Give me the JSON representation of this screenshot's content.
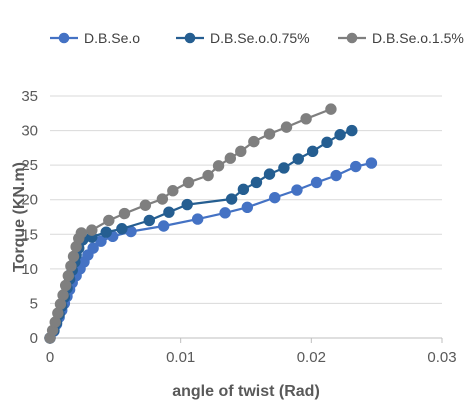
{
  "chart_data": {
    "type": "line",
    "title": "",
    "xlabel": "angle of twist (Rad)",
    "ylabel": "Torque (KN.m)",
    "xlim": [
      0,
      0.03
    ],
    "ylim": [
      0,
      35
    ],
    "x_ticks": [
      "0",
      "0.01",
      "0.02",
      "0.03"
    ],
    "y_ticks": [
      "0",
      "5",
      "10",
      "15",
      "20",
      "25",
      "30",
      "35"
    ],
    "x_tick_values": [
      0,
      0.01,
      0.02,
      0.03
    ],
    "y_tick_values": [
      0,
      5,
      10,
      15,
      20,
      25,
      30,
      35
    ],
    "grid": "horizontal",
    "legend_position": "top",
    "series": [
      {
        "name": "D.B.Se.o",
        "color": "#4472c4",
        "points": [
          [
            0,
            0
          ],
          [
            0.0003,
            1
          ],
          [
            0.0005,
            2
          ],
          [
            0.0007,
            3
          ],
          [
            0.0009,
            4
          ],
          [
            0.0011,
            5
          ],
          [
            0.0013,
            6
          ],
          [
            0.0015,
            7
          ],
          [
            0.0017,
            8
          ],
          [
            0.002,
            9
          ],
          [
            0.0023,
            10
          ],
          [
            0.0026,
            11
          ],
          [
            0.0029,
            12
          ],
          [
            0.0033,
            13
          ],
          [
            0.0039,
            14
          ],
          [
            0.0048,
            14.7
          ],
          [
            0.0062,
            15.4
          ],
          [
            0.0087,
            16.2
          ],
          [
            0.0113,
            17.2
          ],
          [
            0.0134,
            18.1
          ],
          [
            0.0151,
            18.9
          ],
          [
            0.0172,
            20.3
          ],
          [
            0.0189,
            21.4
          ],
          [
            0.0204,
            22.5
          ],
          [
            0.0219,
            23.5
          ],
          [
            0.0234,
            24.8
          ],
          [
            0.0246,
            25.3
          ]
        ]
      },
      {
        "name": "D.B.Se.o.0.75%",
        "color": "#255e91",
        "points": [
          [
            0,
            0
          ],
          [
            0.0003,
            1.1
          ],
          [
            0.0005,
            2.2
          ],
          [
            0.0007,
            3.4
          ],
          [
            0.0009,
            4.6
          ],
          [
            0.0011,
            5.9
          ],
          [
            0.0013,
            7.2
          ],
          [
            0.0015,
            8.5
          ],
          [
            0.0017,
            9.8
          ],
          [
            0.0019,
            11
          ],
          [
            0.002,
            12
          ],
          [
            0.0022,
            13
          ],
          [
            0.0025,
            14.2
          ],
          [
            0.0032,
            14.6
          ],
          [
            0.0043,
            15.3
          ],
          [
            0.0055,
            15.8
          ],
          [
            0.0076,
            17
          ],
          [
            0.0091,
            18.2
          ],
          [
            0.0105,
            19.3
          ],
          [
            0.0139,
            20.1
          ],
          [
            0.0148,
            21.5
          ],
          [
            0.0158,
            22.5
          ],
          [
            0.0168,
            23.7
          ],
          [
            0.0179,
            24.6
          ],
          [
            0.019,
            25.9
          ],
          [
            0.0201,
            27
          ],
          [
            0.0212,
            28.3
          ],
          [
            0.0222,
            29.4
          ],
          [
            0.0231,
            30
          ]
        ]
      },
      {
        "name": "D.B.Se.o.1.5%",
        "color": "#7f7f7f",
        "points": [
          [
            0,
            0
          ],
          [
            0.0002,
            1.1
          ],
          [
            0.0004,
            2.3
          ],
          [
            0.0006,
            3.6
          ],
          [
            0.0008,
            4.9
          ],
          [
            0.001,
            6.2
          ],
          [
            0.0012,
            7.6
          ],
          [
            0.0014,
            9
          ],
          [
            0.0016,
            10.4
          ],
          [
            0.0018,
            11.8
          ],
          [
            0.002,
            13.2
          ],
          [
            0.0022,
            14.4
          ],
          [
            0.0024,
            15.2
          ],
          [
            0.0032,
            15.6
          ],
          [
            0.0045,
            17
          ],
          [
            0.0057,
            18
          ],
          [
            0.0073,
            19.2
          ],
          [
            0.0086,
            20.1
          ],
          [
            0.0094,
            21.3
          ],
          [
            0.0106,
            22.5
          ],
          [
            0.0121,
            23.5
          ],
          [
            0.0129,
            24.9
          ],
          [
            0.0138,
            26
          ],
          [
            0.0146,
            27
          ],
          [
            0.0156,
            28.4
          ],
          [
            0.0168,
            29.5
          ],
          [
            0.0181,
            30.5
          ],
          [
            0.0196,
            31.7
          ],
          [
            0.0215,
            33.1
          ]
        ]
      }
    ]
  }
}
